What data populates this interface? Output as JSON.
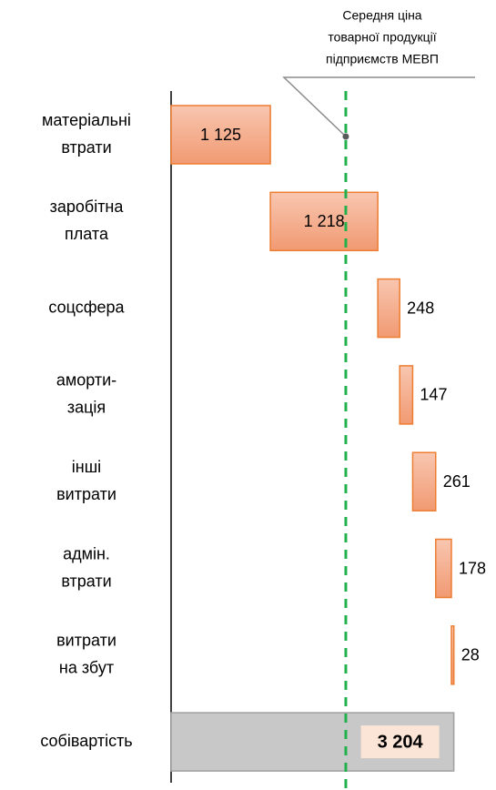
{
  "chart_data": {
    "type": "waterfall",
    "categories": [
      [
        "матеріальні",
        "втрати"
      ],
      [
        "заробітна",
        "плата"
      ],
      [
        "соцсфера"
      ],
      [
        "аморти-",
        "зація"
      ],
      [
        "інші",
        "витрати"
      ],
      [
        "адмін.",
        "втрати"
      ],
      [
        "витрати",
        "на збут"
      ],
      [
        "собівартість"
      ]
    ],
    "values": [
      1125,
      1218,
      248,
      147,
      261,
      178,
      28,
      3204
    ],
    "value_labels": [
      "1 125",
      "1 218",
      "248",
      "147",
      "261",
      "178",
      "28",
      "3 204"
    ],
    "total_index": 7,
    "color": "#f4a582",
    "total_color": "#c8c8c8",
    "xlim": [
      0,
      3600
    ],
    "reference_line": {
      "value": 1980,
      "color": "#22b14c",
      "label": [
        "Середня ціна",
        "товарної продукції",
        "підприємств МЕВП"
      ]
    }
  }
}
